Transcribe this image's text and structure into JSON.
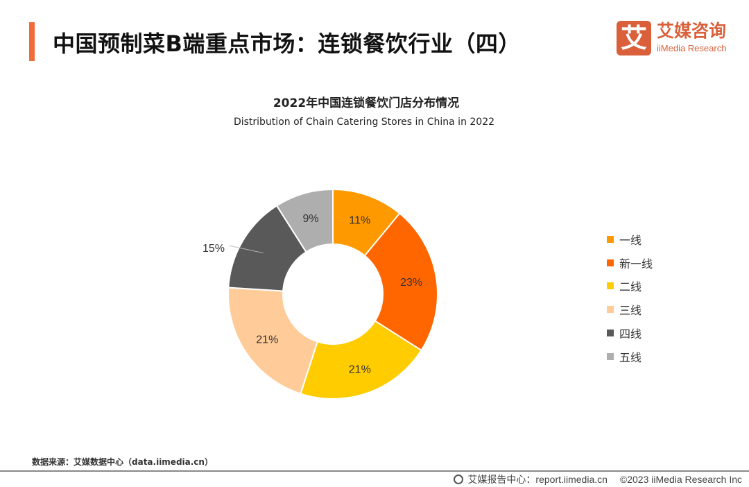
{
  "header": {
    "title": "中国预制菜B端重点市场：连锁餐饮行业（四）",
    "logo_mark": "艾",
    "logo_cn": "艾媒咨询",
    "logo_en": "iiMedia Research"
  },
  "chart_data": {
    "type": "donut",
    "title": "2022年中国连锁餐饮门店分布情况",
    "subtitle": "Distribution of Chain Catering Stores in China in 2022",
    "categories": [
      "一线",
      "新一线",
      "二线",
      "三线",
      "四线",
      "五线"
    ],
    "values": [
      11,
      23,
      21,
      21,
      15,
      9
    ],
    "labels": [
      "11%",
      "23%",
      "21%",
      "21%",
      "15%",
      "9%"
    ],
    "colors": [
      "#FF9900",
      "#FF6600",
      "#FFCC00",
      "#FFCC99",
      "#595959",
      "#AEAEAE"
    ],
    "legend_position": "right"
  },
  "footer": {
    "source": "数据来源：艾媒数据中心（data.iimedia.cn）",
    "report": "艾媒报告中心：report.iimedia.cn",
    "copyright": "©2023  iiMedia Research  Inc"
  }
}
